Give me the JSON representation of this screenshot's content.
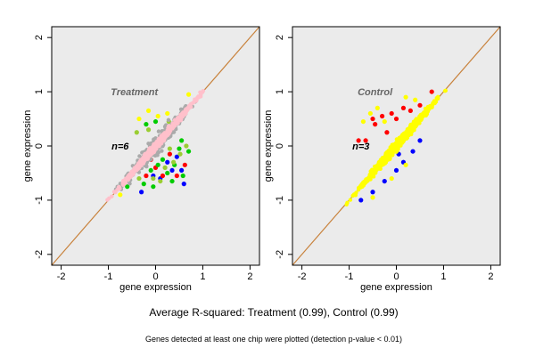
{
  "figure": {
    "summary": "Average R-squared: Treatment (0.99), Control (0.99)",
    "footnote": "Genes detected at least one chip were plotted (detection p-value < 0.01)"
  },
  "chart_data": [
    {
      "type": "scatter",
      "title": "Treatment",
      "annotation": "n=6",
      "xlabel": "gene expression",
      "ylabel": "gene expression",
      "xlim": [
        -2.2,
        2.2
      ],
      "ylim": [
        -2.2,
        2.2
      ],
      "xticks": [
        -2,
        -1,
        0,
        1,
        2
      ],
      "yticks": [
        -2,
        -1,
        0,
        1,
        2
      ],
      "grid": false,
      "background": "#ebebeb",
      "reference_line": {
        "intercept": 0,
        "slope": 1,
        "color": "#c8823c"
      },
      "series": [
        {
          "color": "#0000ff",
          "points": [
            [
              -0.05,
              -0.55
            ],
            [
              0.1,
              -0.6
            ],
            [
              0.35,
              -0.45
            ],
            [
              0.6,
              -0.7
            ],
            [
              0.55,
              -0.45
            ],
            [
              -0.3,
              -0.85
            ],
            [
              0.25,
              -0.3
            ],
            [
              0.45,
              -0.2
            ]
          ]
        },
        {
          "color": "#ff0000",
          "points": [
            [
              0.0,
              -0.4
            ],
            [
              -0.2,
              -0.55
            ],
            [
              0.3,
              -0.15
            ],
            [
              0.45,
              -0.55
            ],
            [
              0.62,
              -0.35
            ],
            [
              0.15,
              -0.55
            ],
            [
              -0.1,
              -0.25
            ]
          ]
        },
        {
          "color": "#ffff00",
          "points": [
            [
              -0.15,
              0.65
            ],
            [
              0.05,
              0.55
            ],
            [
              -0.35,
              0.5
            ],
            [
              0.25,
              0.6
            ],
            [
              -0.75,
              -0.9
            ],
            [
              0.7,
              0.95
            ]
          ]
        },
        {
          "color": "#00cc00",
          "points": [
            [
              -0.1,
              -0.45
            ],
            [
              0.05,
              -0.35
            ],
            [
              0.25,
              -0.5
            ],
            [
              0.4,
              -0.35
            ],
            [
              0.58,
              -0.55
            ],
            [
              -0.25,
              -0.7
            ],
            [
              0.7,
              -0.1
            ],
            [
              0.5,
              -0.05
            ],
            [
              0.15,
              -0.25
            ],
            [
              0.35,
              -0.65
            ],
            [
              -0.05,
              -0.75
            ],
            [
              0.0,
              0.45
            ],
            [
              -0.2,
              0.4
            ],
            [
              -0.6,
              -0.75
            ],
            [
              0.55,
              0.1
            ]
          ]
        },
        {
          "color": "#9acd32",
          "points": [
            [
              -0.05,
              -0.6
            ],
            [
              0.2,
              -0.4
            ],
            [
              0.38,
              -0.3
            ],
            [
              0.52,
              -0.15
            ],
            [
              0.1,
              -0.65
            ],
            [
              -0.35,
              -0.6
            ],
            [
              0.65,
              0.0
            ],
            [
              0.3,
              -0.05
            ],
            [
              -0.15,
              0.3
            ],
            [
              -0.4,
              0.25
            ],
            [
              0.28,
              0.45
            ]
          ]
        },
        {
          "color": "#aaaaaa",
          "band": {
            "xmin": -1.0,
            "xmax": 1.0,
            "spread": 0.3,
            "count": 400,
            "seed": 11
          }
        },
        {
          "color": "#ffc0cb",
          "band": {
            "xmin": -1.15,
            "xmax": 1.2,
            "spread": 0.12,
            "count": 700,
            "seed": 23
          }
        }
      ]
    },
    {
      "type": "scatter",
      "title": "Control",
      "annotation": "n=3",
      "xlabel": "gene expression",
      "ylabel": "gene expression",
      "xlim": [
        -2.2,
        2.2
      ],
      "ylim": [
        -2.2,
        2.2
      ],
      "xticks": [
        -2,
        -1,
        0,
        1,
        2
      ],
      "yticks": [
        -2,
        -1,
        0,
        1,
        2
      ],
      "grid": false,
      "background": "#ebebeb",
      "reference_line": {
        "intercept": 0,
        "slope": 1,
        "color": "#c8823c"
      },
      "series": [
        {
          "color": "#0000ff",
          "points": [
            [
              -0.25,
              -0.65
            ],
            [
              0.0,
              -0.45
            ],
            [
              0.15,
              -0.3
            ],
            [
              0.35,
              -0.1
            ],
            [
              -0.5,
              -0.85
            ],
            [
              0.5,
              0.1
            ],
            [
              -0.75,
              -1.0
            ],
            [
              0.05,
              -0.15
            ]
          ]
        },
        {
          "color": "#ff0000",
          "points": [
            [
              -0.65,
              0.1
            ],
            [
              -0.5,
              0.5
            ],
            [
              -0.45,
              0.4
            ],
            [
              -0.3,
              0.55
            ],
            [
              0.0,
              0.5
            ],
            [
              0.15,
              0.7
            ],
            [
              0.3,
              0.65
            ],
            [
              0.5,
              0.75
            ],
            [
              0.75,
              1.0
            ],
            [
              -0.8,
              0.1
            ],
            [
              -0.2,
              0.25
            ],
            [
              -0.1,
              0.6
            ]
          ]
        },
        {
          "color": "#ffff00",
          "band": {
            "xmin": -1.15,
            "xmax": 1.2,
            "spread": 0.16,
            "count": 700,
            "seed": 37
          }
        },
        {
          "color": "#ffff00",
          "points": [
            [
              -0.7,
              0.45
            ],
            [
              -0.55,
              0.6
            ],
            [
              -0.4,
              0.7
            ],
            [
              -0.25,
              0.45
            ],
            [
              0.2,
              0.9
            ],
            [
              0.4,
              0.85
            ],
            [
              -0.1,
              -0.6
            ],
            [
              0.2,
              -0.35
            ],
            [
              -0.5,
              -0.95
            ]
          ]
        }
      ]
    }
  ]
}
